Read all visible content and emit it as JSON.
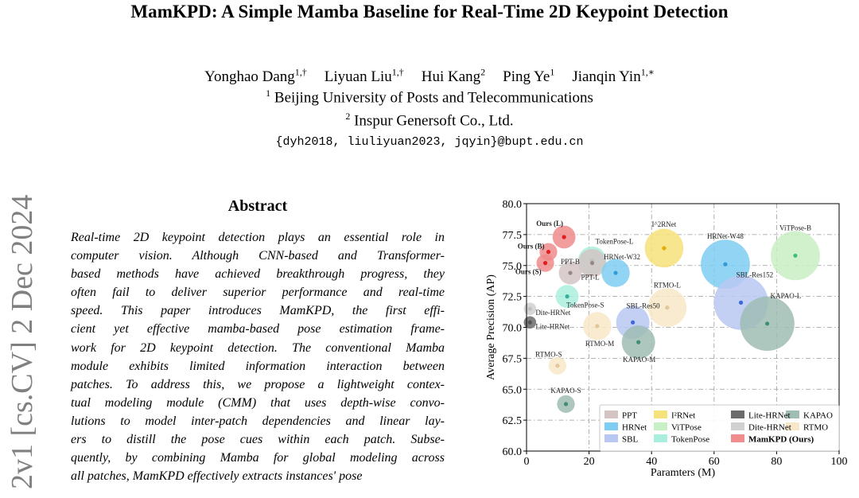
{
  "paper": {
    "title": "MamKPD: A Simple Mamba Baseline for Real-Time 2D Keypoint Detection",
    "authors": [
      {
        "name": "Yonghao Dang",
        "sup": "1,†"
      },
      {
        "name": "Liyuan Liu",
        "sup": "1,†"
      },
      {
        "name": "Hui Kang",
        "sup": "2"
      },
      {
        "name": "Ping Ye",
        "sup": "1"
      },
      {
        "name": "Jianqin Yin",
        "sup": "1,∗"
      }
    ],
    "affiliations": [
      {
        "sup": "1",
        "name": "Beijing University of Posts and Telecommunications"
      },
      {
        "sup": "2",
        "name": "Inspur Genersoft Co., Ltd."
      }
    ],
    "emails": "{dyh2018, liuliyuan2023, jqyin}@bupt.edu.cn",
    "arxiv_stamp": "2v1  [cs.CV]  2 Dec 2024",
    "abstract_heading": "Abstract",
    "abstract_lines": [
      "Real-time 2D keypoint detection plays an essential role in",
      "computer vision. Although CNN-based and Transformer-",
      "based methods have achieved breakthrough progress, they",
      "often fail to deliver superior performance and real-time",
      "speed.   This paper introduces MamKPD, the first effi-",
      "cient yet effective mamba-based pose estimation frame-",
      "work for 2D keypoint detection. The conventional Mamba",
      "module exhibits limited information interaction between",
      "patches. To address this, we propose a lightweight contex-",
      "tual modeling module (CMM) that uses depth-wise convo-",
      "lutions to model inter-patch dependencies and linear lay-",
      "ers to distill the pose cues within each patch.   Subse-",
      "quently, by combining Mamba for global modeling across",
      "all patches, MamKPD effectively extracts instances' pose"
    ]
  },
  "chart_data": {
    "type": "scatter",
    "xlabel": "Paramters (M)",
    "ylabel": "Average Precision (AP)",
    "xlim": [
      0,
      100
    ],
    "ylim": [
      60,
      80
    ],
    "xticks": [
      "0",
      "20",
      "40",
      "60",
      "80",
      "100"
    ],
    "yticks": [
      "60.0",
      "62.5",
      "65.0",
      "67.5",
      "70.0",
      "72.5",
      "75.0",
      "77.5",
      "80.0"
    ],
    "grid": true,
    "legend_position": "lower-right",
    "legend": [
      {
        "name": "PPT",
        "color": "#d4c4c4"
      },
      {
        "name": "I²RNet",
        "color": "#f6e27a"
      },
      {
        "name": "Lite-HRNet",
        "color": "#6b6b6b"
      },
      {
        "name": "KAPAO",
        "color": "#9fbdb4"
      },
      {
        "name": "HRNet",
        "color": "#7fcdf2"
      },
      {
        "name": "ViTPose",
        "color": "#c9efc4"
      },
      {
        "name": "Dite-HRNet",
        "color": "#d0d0d0"
      },
      {
        "name": "RTMO",
        "color": "#f8e7c7"
      },
      {
        "name": "SBL",
        "color": "#b8c8f2"
      },
      {
        "name": "TokenPose",
        "color": "#aaeedd"
      },
      {
        "name": "MamKPD (Ours)",
        "color": "#f08c8c",
        "bold": true
      }
    ],
    "points": [
      {
        "label": "Ours (L)",
        "x": 12,
        "y": 77.3,
        "size": 3,
        "color": "#f08c8c",
        "dot": "#e01e1e",
        "bold": true
      },
      {
        "label": "Ours (B)",
        "x": 7,
        "y": 76.1,
        "size": 2,
        "color": "#f08c8c",
        "dot": "#e01e1e",
        "bold": true
      },
      {
        "label": "Ours (S)",
        "x": 6,
        "y": 75.2,
        "size": 2,
        "color": "#f08c8c",
        "dot": "#e01e1e",
        "bold": true
      },
      {
        "label": "PPT-B",
        "x": 14,
        "y": 74.4,
        "size": 3,
        "color": "#d4c4c4",
        "dot": "#998888"
      },
      {
        "label": "TokenPose-L",
        "x": 21,
        "y": 75.4,
        "size": 4,
        "color": "#aaeedd",
        "dot": "#34b0a0"
      },
      {
        "label": "PPT-L",
        "x": 21,
        "y": 75.2,
        "size": 4,
        "color": "#d4c4c4",
        "dot": "#998888"
      },
      {
        "label": "HRNet-W32",
        "x": 28.5,
        "y": 74.4,
        "size": 4,
        "color": "#7fcdf2",
        "dot": "#2f9bd8"
      },
      {
        "label": "TokenPose-S",
        "x": 13,
        "y": 72.5,
        "size": 3,
        "color": "#aaeedd",
        "dot": "#34b0a0"
      },
      {
        "label": "I^2RNet",
        "x": 44,
        "y": 76.4,
        "size": 6,
        "color": "#f6e27a",
        "dot": "#e0b000"
      },
      {
        "label": "HRNet-W48",
        "x": 63.6,
        "y": 75.1,
        "size": 8,
        "color": "#7fcdf2",
        "dot": "#2f9bd8"
      },
      {
        "label": "ViTPose-B",
        "x": 86,
        "y": 75.8,
        "size": 8,
        "color": "#c9efc4",
        "dot": "#3fc07a"
      },
      {
        "label": "Dite-HRNet",
        "x": 1.1,
        "y": 71.5,
        "size": 1,
        "color": "#d0d0d0",
        "dot": "#c0c0c0"
      },
      {
        "label": "Lite-HRNet",
        "x": 1.1,
        "y": 70.4,
        "size": 1,
        "color": "#6b6b6b",
        "dot": "#555555"
      },
      {
        "label": "RTMO-L",
        "x": 45,
        "y": 71.6,
        "size": 6,
        "color": "#f8e7c7",
        "dot": "#e0c89a"
      },
      {
        "label": "SBL-Res50",
        "x": 34,
        "y": 70.4,
        "size": 5,
        "color": "#b8c8f2",
        "dot": "#3c6ad8"
      },
      {
        "label": "SBL-Res152",
        "x": 68.6,
        "y": 72.0,
        "size": 9,
        "color": "#b8c8f2",
        "dot": "#3c6ad8"
      },
      {
        "label": "KAPAO-L",
        "x": 77,
        "y": 70.3,
        "size": 9,
        "color": "#9fbdb4",
        "dot": "#3e8f74"
      },
      {
        "label": "RTMO-M",
        "x": 22.6,
        "y": 70.1,
        "size": 4,
        "color": "#f8e7c7",
        "dot": "#e0c89a"
      },
      {
        "label": "KAPAO-M",
        "x": 35.8,
        "y": 68.8,
        "size": 5,
        "color": "#9fbdb4",
        "dot": "#3e8f74"
      },
      {
        "label": "RTMO-S",
        "x": 9.9,
        "y": 66.9,
        "size": 2,
        "color": "#f8e7c7",
        "dot": "#e0c89a"
      },
      {
        "label": "KAPAO-S",
        "x": 12.6,
        "y": 63.8,
        "size": 2,
        "color": "#9fbdb4",
        "dot": "#3e8f74"
      }
    ]
  }
}
